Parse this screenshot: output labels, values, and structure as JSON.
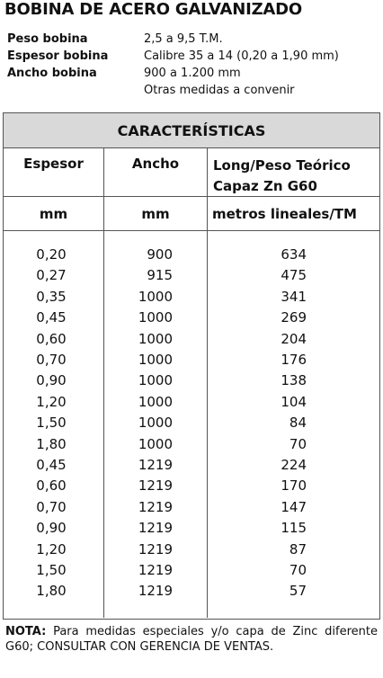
{
  "title": "BOBINA DE ACERO GALVANIZADO",
  "specs": [
    {
      "label": "Peso bobina",
      "value": "2,5  a 9,5 T.M."
    },
    {
      "label": "Espesor bobina",
      "value": "Calibre 35 a 14 (0,20 a 1,90 mm)"
    },
    {
      "label": "Ancho bobina",
      "value": "900 a 1.200 mm"
    }
  ],
  "specs_note": "Otras medidas a convenir",
  "table": {
    "title": "CARACTERÍSTICAS",
    "headers": [
      "Espesor",
      "Ancho",
      "Long/Peso Teórico Capaz Zn G60"
    ],
    "units": [
      "mm",
      "mm",
      "metros lineales/TM"
    ],
    "rows": [
      [
        "0,20",
        "900",
        "634"
      ],
      [
        "0,27",
        "915",
        "475"
      ],
      [
        "0,35",
        "1000",
        "341"
      ],
      [
        "0,45",
        "1000",
        "269"
      ],
      [
        "0,60",
        "1000",
        "204"
      ],
      [
        "0,70",
        "1000",
        "176"
      ],
      [
        "0,90",
        "1000",
        "138"
      ],
      [
        "1,20",
        "1000",
        "104"
      ],
      [
        "1,50",
        "1000",
        "84"
      ],
      [
        "1,80",
        "1000",
        "70"
      ],
      [
        "0,45",
        "1219",
        "224"
      ],
      [
        "0,60",
        "1219",
        "170"
      ],
      [
        "0,70",
        "1219",
        "147"
      ],
      [
        "0,90",
        "1219",
        "115"
      ],
      [
        "1,20",
        "1219",
        "87"
      ],
      [
        "1,50",
        "1219",
        "70"
      ],
      [
        "1,80",
        "1219",
        "57"
      ]
    ]
  },
  "note": {
    "label": "NOTA:",
    "text": "Para medidas especiales y/o capa de Zinc diferente G60; CONSULTAR CON GERENCIA DE VENTAS."
  }
}
